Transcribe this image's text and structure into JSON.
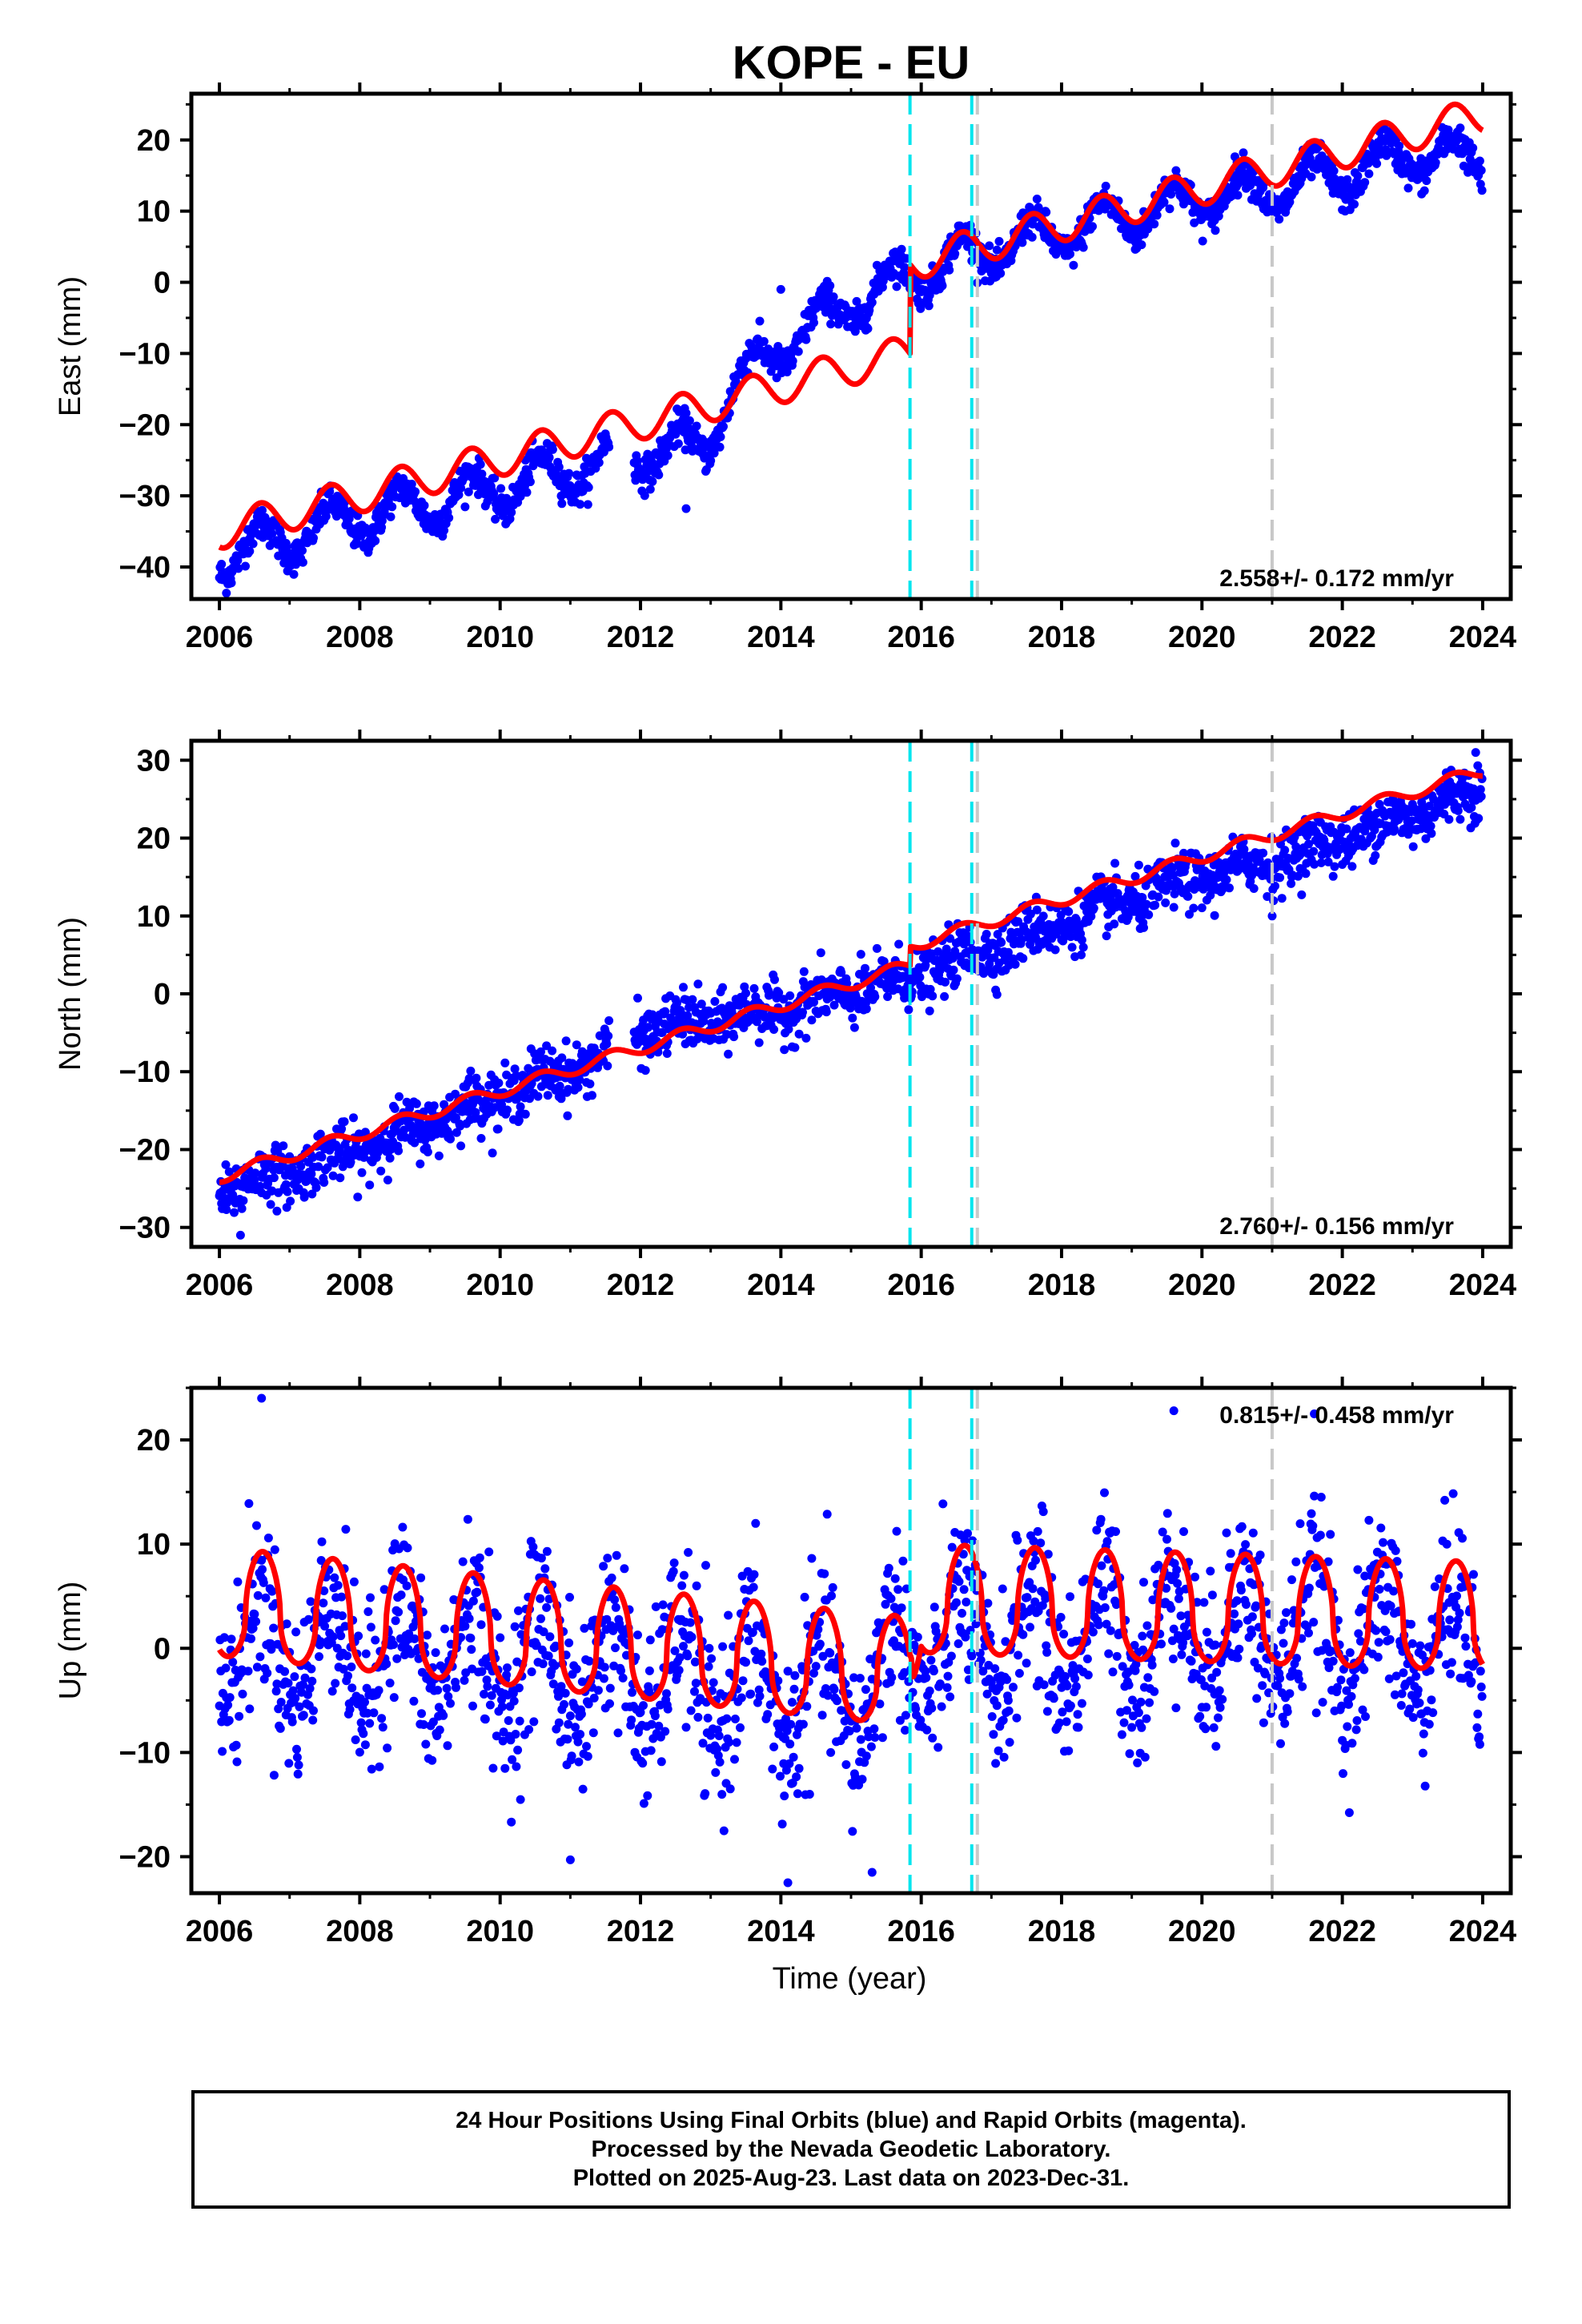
{
  "chart_data": {
    "title": "KOPE - EU",
    "type": "scatter",
    "xlabel": "Time (year)",
    "xlim": [
      2005.6,
      2024.4
    ],
    "xticks": [
      2006,
      2008,
      2010,
      2012,
      2014,
      2016,
      2018,
      2020,
      2022,
      2024
    ],
    "vertical_lines": [
      {
        "x": 2015.84,
        "color": "#00e5ee",
        "style": "dashed"
      },
      {
        "x": 2016.72,
        "color": "#00e5ee",
        "style": "dashed"
      },
      {
        "x": 2016.8,
        "color": "#c8c8c8",
        "style": "dashed"
      },
      {
        "x": 2021.0,
        "color": "#c8c8c8",
        "style": "dashed"
      }
    ],
    "series_colors": {
      "final_orbits": "#0000ff",
      "model": "#ff0000"
    },
    "panels": [
      {
        "name": "east",
        "ylabel": "East (mm)",
        "ylim": [
          -44.5,
          26.5
        ],
        "yticks": [
          -40,
          -30,
          -20,
          -10,
          0,
          10,
          20
        ],
        "rate_label": "2.558+/- 0.172 mm/yr",
        "rate_label_position": "bottom-right",
        "model": {
          "t0": 2006.0,
          "offset": -35,
          "rate": 2.558,
          "amplitude": 2.5,
          "phase": 2006.33,
          "steps": [
            {
              "t": 2015.84,
              "dy": 12.5
            }
          ]
        },
        "data": {
          "t0": 2006.0,
          "base": [
            [
              2006.0,
              -38.5
            ],
            [
              2008.0,
              -33.0
            ],
            [
              2010.0,
              -29.0
            ],
            [
              2011.9,
              -24.0
            ],
            [
              2012.9,
              -23.0
            ],
            [
              2013.3,
              -15.0
            ],
            [
              2014.0,
              -9.0
            ],
            [
              2015.0,
              -3.0
            ],
            [
              2015.84,
              1.0
            ],
            [
              2016.72,
              4.0
            ],
            [
              2018.0,
              7.0
            ],
            [
              2020.0,
              12.0
            ],
            [
              2021.0,
              13.0
            ],
            [
              2022.0,
              15.0
            ],
            [
              2023.0,
              18.0
            ],
            [
              2024.0,
              17.0
            ]
          ],
          "amplitude": 3.0,
          "noise": 1.2,
          "outliers": [
            [
              2012.65,
              -31.8
            ],
            [
              2012.3,
              -24.0
            ],
            [
              2014.0,
              -1.0
            ]
          ]
        }
      },
      {
        "name": "north",
        "ylabel": "North (mm)",
        "ylim": [
          -32.5,
          32.5
        ],
        "yticks": [
          -30,
          -20,
          -10,
          0,
          10,
          20,
          30
        ],
        "rate_label": "2.760+/- 0.156 mm/yr",
        "rate_label_position": "bottom-right",
        "model": {
          "t0": 2006.0,
          "offset": -23.5,
          "rate": 2.76,
          "amplitude": 0.8,
          "phase": 2006.33,
          "steps": [
            {
              "t": 2015.84,
              "dy": 2.5
            }
          ]
        },
        "data": {
          "t0": 2006.0,
          "base": [
            [
              2006.0,
              -25.5
            ],
            [
              2008.0,
              -20.0
            ],
            [
              2010.0,
              -13.0
            ],
            [
              2011.5,
              -8.0
            ],
            [
              2011.9,
              -5.0
            ],
            [
              2014.0,
              -2.0
            ],
            [
              2015.84,
              2.0
            ],
            [
              2016.72,
              5.0
            ],
            [
              2018.0,
              9.0
            ],
            [
              2020.0,
              15.0
            ],
            [
              2021.0,
              17.0
            ],
            [
              2022.0,
              20.0
            ],
            [
              2023.0,
              23.0
            ],
            [
              2024.0,
              26.5
            ]
          ],
          "amplitude": 0.8,
          "noise": 1.8,
          "outliers": [
            [
              2006.3,
              -31.0
            ],
            [
              2023.9,
              31.0
            ],
            [
              2021.0,
              10.0
            ]
          ]
        }
      },
      {
        "name": "up",
        "ylabel": "Up (mm)",
        "ylim": [
          -23.5,
          25.0
        ],
        "yticks": [
          -20,
          -10,
          0,
          10,
          20
        ],
        "rate_label": "0.815+/- 0.458 mm/yr",
        "rate_label_position": "top-right",
        "model": {
          "t0": 2006.0,
          "offset": 3.0,
          "rate": 0.0,
          "amplitude": 6.5,
          "phase": 2006.37,
          "sharpness": 2.0,
          "trend_points": [
            [
              2006.0,
              3.2
            ],
            [
              2015.84,
              -3.5
            ],
            [
              2016.0,
              3.5
            ],
            [
              2024.0,
              1.8
            ]
          ]
        },
        "data": {
          "t0": 2006.0,
          "base": [
            [
              2006.0,
              0.0
            ],
            [
              2010.0,
              -1.0
            ],
            [
              2015.0,
              -5.0
            ],
            [
              2016.0,
              0.0
            ],
            [
              2020.0,
              2.0
            ],
            [
              2024.0,
              0.0
            ]
          ],
          "amplitude": 5.0,
          "noise": 4.0,
          "outliers": [
            [
              2006.6,
              24.0
            ],
            [
              2014.1,
              -22.5
            ],
            [
              2015.3,
              -21.5
            ],
            [
              2019.6,
              22.8
            ],
            [
              2021.6,
              22.5
            ],
            [
              2011.0,
              -20.3
            ]
          ]
        }
      }
    ]
  },
  "footer": {
    "line1": "24 Hour Positions Using Final Orbits (blue) and Rapid Orbits (magenta).",
    "line2": "Processed by the Nevada Geodetic Laboratory.",
    "line3": "Plotted on 2025-Aug-23. Last data on 2023-Dec-31."
  }
}
